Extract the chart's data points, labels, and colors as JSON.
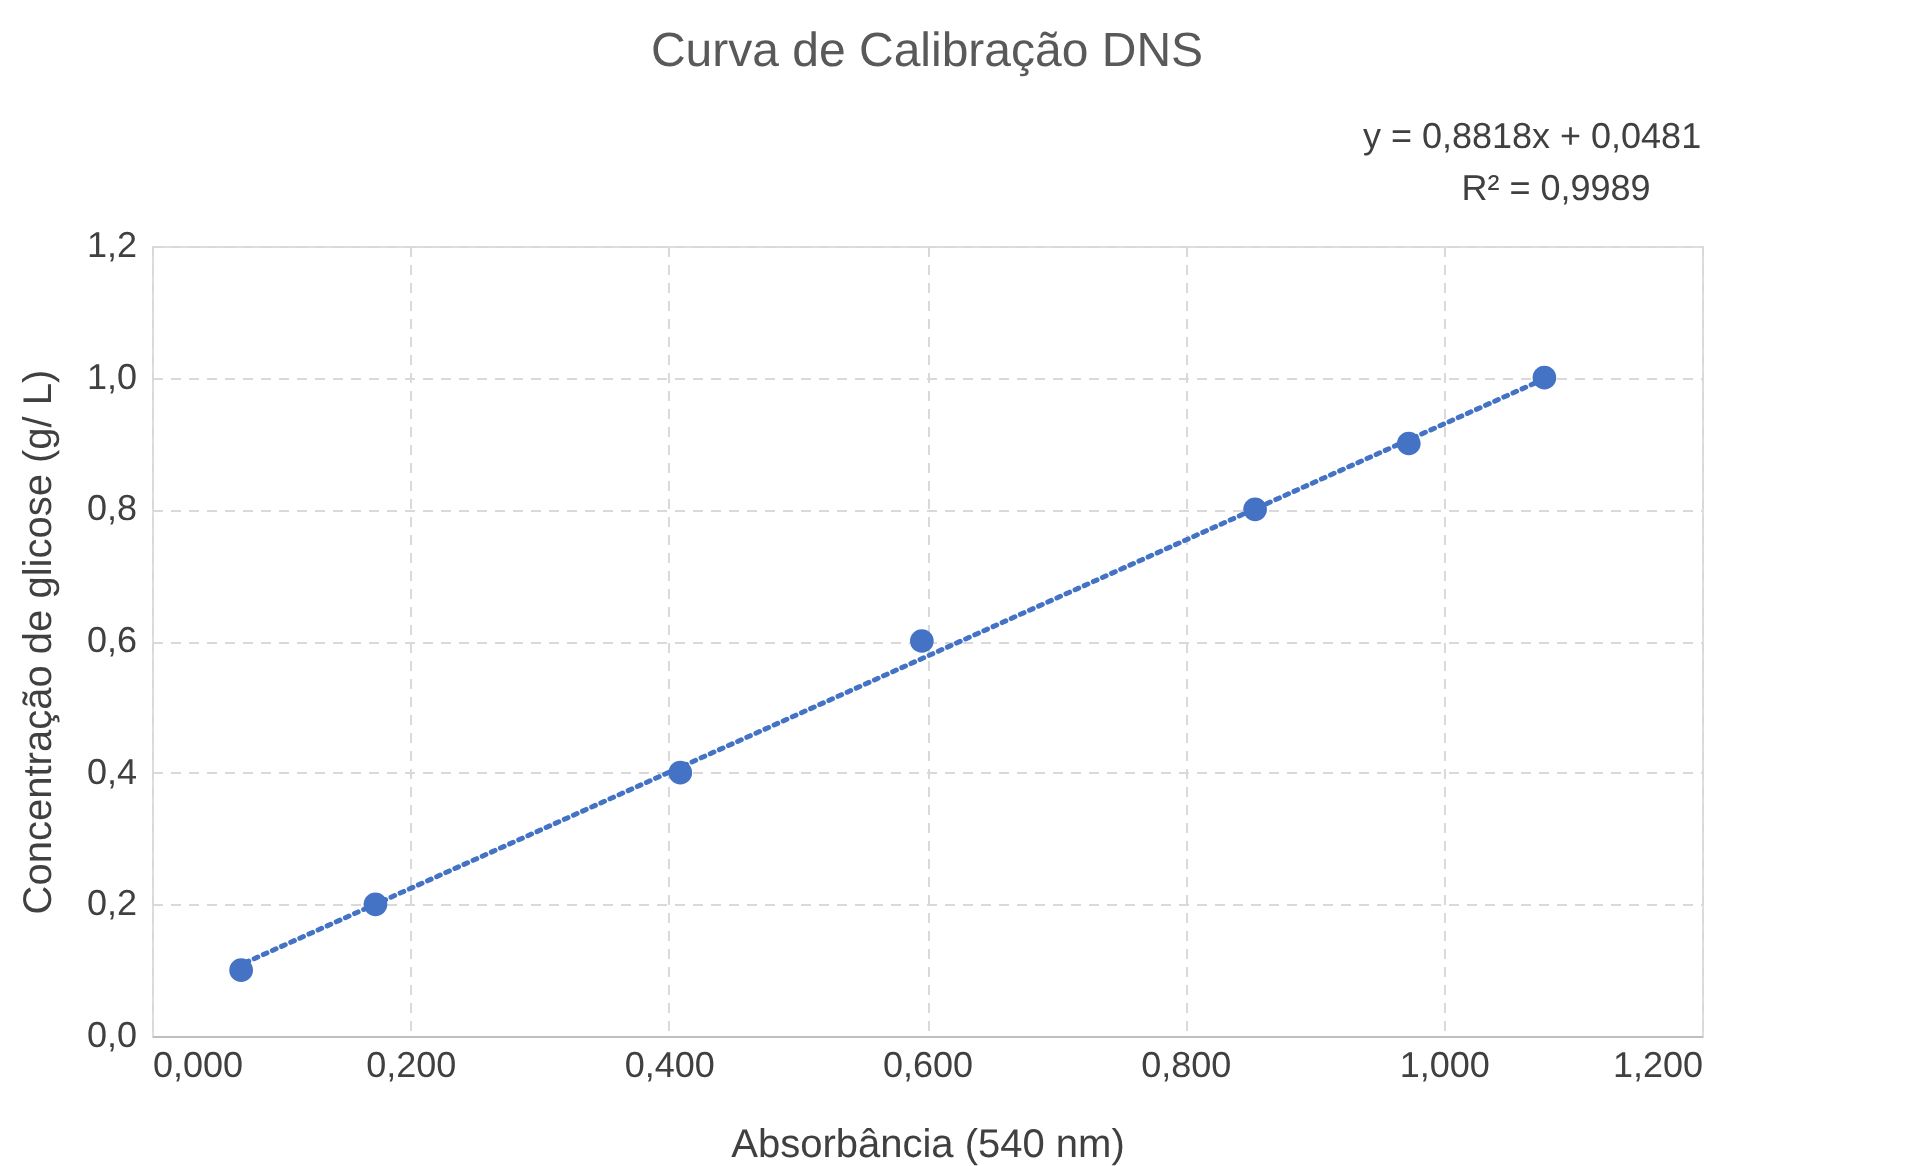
{
  "chart_data": {
    "type": "scatter",
    "title": "Curva de Calibração DNS",
    "xlabel": "Absorbância (540 nm)",
    "ylabel": "Concentração de glicose (g/ L)",
    "x": [
      0.069,
      0.173,
      0.409,
      0.596,
      0.854,
      0.973,
      1.078
    ],
    "series": [
      {
        "type": "scatter",
        "color": "#4472c4",
        "marker": "circle",
        "values": [
          0.1,
          0.2,
          0.4,
          0.6,
          0.8,
          0.9,
          1.0
        ]
      },
      {
        "type": "line",
        "color": "#4472c4",
        "line_style": "dotted",
        "marker": "none",
        "x": [
          0.065,
          1.08
        ],
        "values": [
          0.105,
          1.0
        ]
      }
    ],
    "xlim": [
      0,
      1.2
    ],
    "ylim": [
      0,
      1.2
    ],
    "xticks": [
      {
        "value": 0,
        "label": "0,000"
      },
      {
        "value": 0.2,
        "label": "0,200"
      },
      {
        "value": 0.4,
        "label": "0,400"
      },
      {
        "value": 0.6,
        "label": "0,600"
      },
      {
        "value": 0.8,
        "label": "0,800"
      },
      {
        "value": 1.0,
        "label": "1,000"
      },
      {
        "value": 1.2,
        "label": "1,200"
      }
    ],
    "yticks": [
      {
        "value": 0,
        "label": "0,0"
      },
      {
        "value": 0.2,
        "label": "0,2"
      },
      {
        "value": 0.4,
        "label": "0,4"
      },
      {
        "value": 0.6,
        "label": "0,6"
      },
      {
        "value": 0.8,
        "label": "0,8"
      },
      {
        "value": 1.0,
        "label": "1,0"
      },
      {
        "value": 1.2,
        "label": "1,2"
      }
    ],
    "grid": true,
    "annotations": [
      "y = 0,8818x + 0,0481",
      "R² = 0,9989"
    ]
  }
}
